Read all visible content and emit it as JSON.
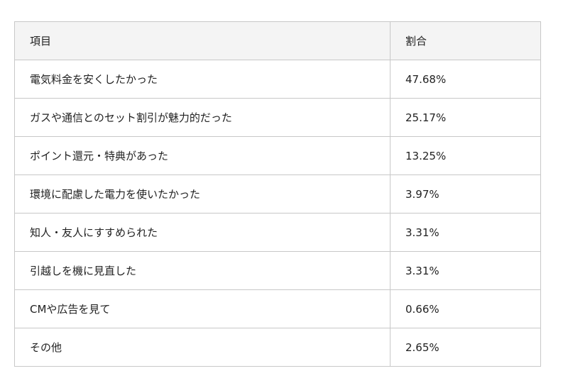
{
  "table": {
    "headers": [
      "項目",
      "割合"
    ],
    "rows": [
      [
        "電気料金を安くしたかった",
        "47.68%"
      ],
      [
        "ガスや通信とのセット割引が魅力的だった",
        "25.17%"
      ],
      [
        "ポイント還元・特典があった",
        "13.25%"
      ],
      [
        "環境に配慮した電力を使いたかった",
        "3.97%"
      ],
      [
        "知人・友人にすすめられた",
        "3.31%"
      ],
      [
        "引越しを機に見直した",
        "3.31%"
      ],
      [
        "CMや広告を見て",
        "0.66%"
      ],
      [
        "その他",
        "2.65%"
      ]
    ]
  }
}
